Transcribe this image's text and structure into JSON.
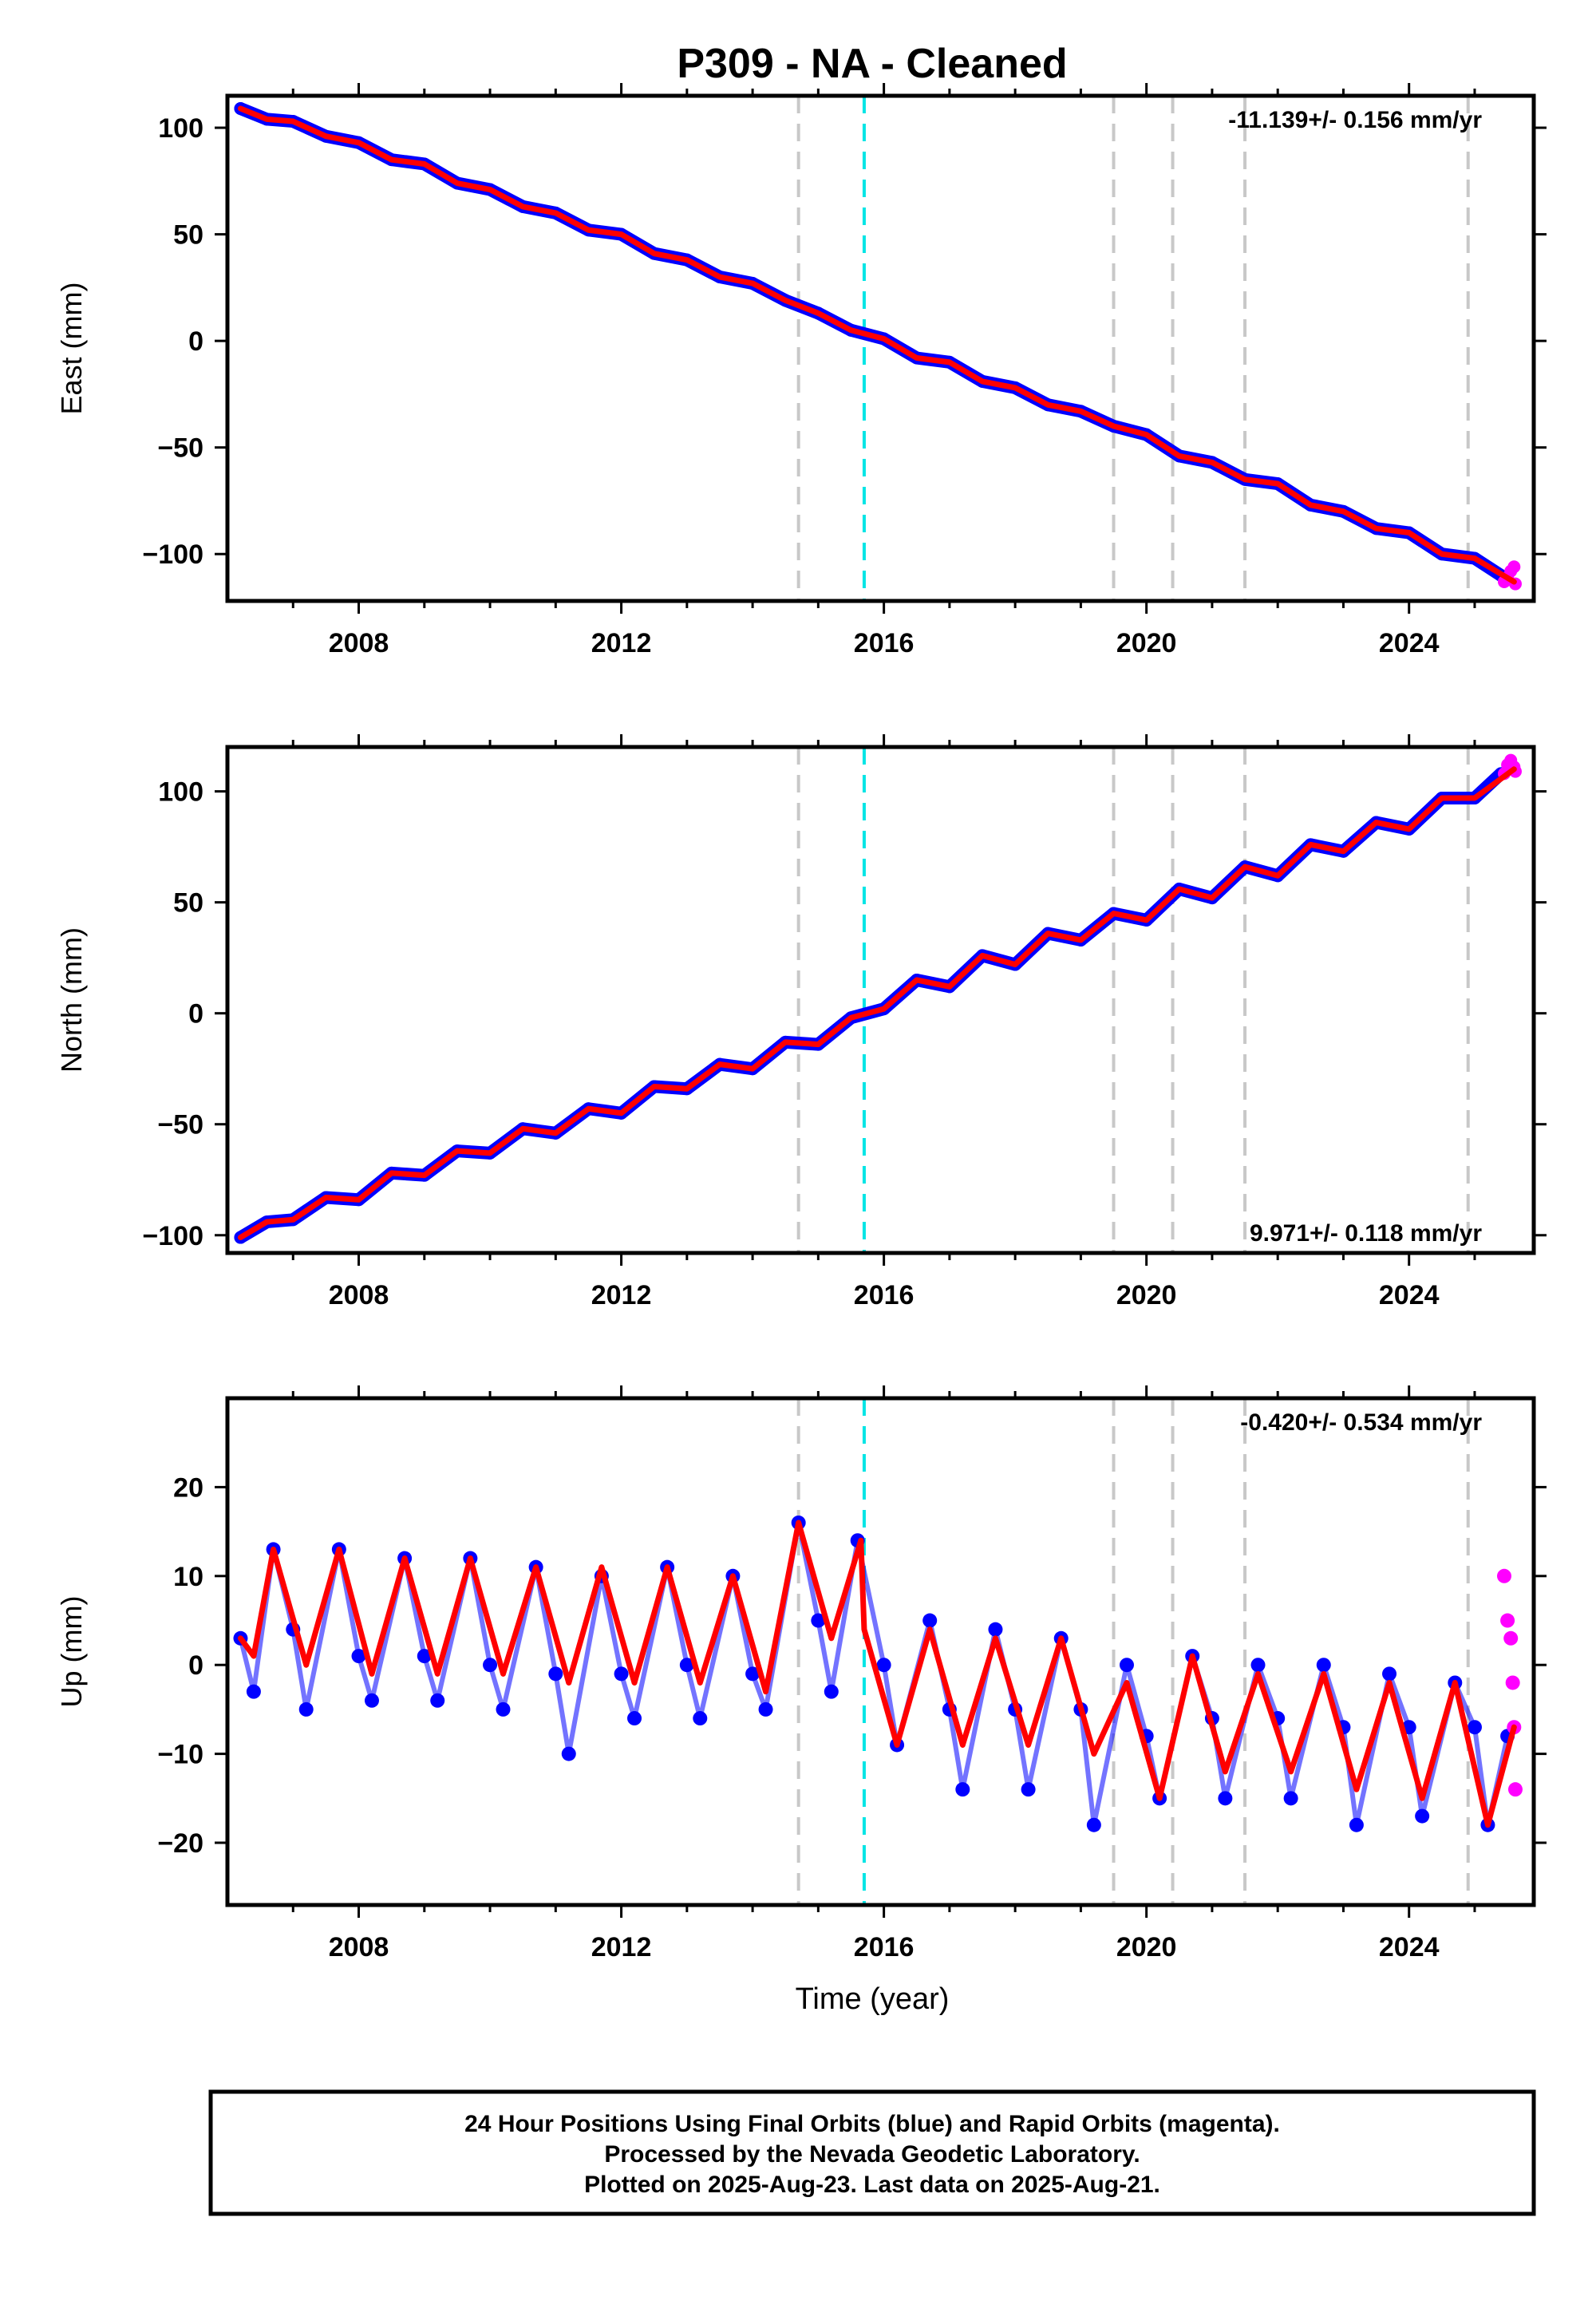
{
  "title": "P309  - NA - Cleaned",
  "xlabel": "Time (year)",
  "caption": {
    "line1": "24 Hour Positions Using Final Orbits (blue) and Rapid Orbits (magenta).",
    "line2": "Processed by the Nevada Geodetic Laboratory.",
    "line3": "Plotted on 2025-Aug-23. Last data on 2025-Aug-21."
  },
  "colors": {
    "final_orbits": "#0000ff",
    "rapid_orbits": "#ff00ff",
    "model": "#ff0000",
    "equipment_change": "#c8c8c8",
    "earthquake": "#00e5e5"
  },
  "chart_data": [
    {
      "type": "scatter",
      "component": "East",
      "ylabel": "East (mm)",
      "rate_label": "-11.139+/- 0.156 mm/yr",
      "rate_position": "top-right",
      "xlim": [
        2006.0,
        2025.9
      ],
      "ylim": [
        -122,
        115
      ],
      "x_ticks": [
        "2008",
        "2012",
        "2016",
        "2020",
        "2024"
      ],
      "y_ticks": [
        "100",
        "50",
        "0",
        "−50",
        "−100"
      ],
      "y_tick_values": [
        100,
        50,
        0,
        -50,
        -100
      ],
      "equipment_change_years": [
        2014.7,
        2019.5,
        2020.4,
        2021.5,
        2024.9
      ],
      "earthquake_years": [
        2015.7
      ],
      "series": [
        {
          "name": "Final Orbits",
          "color": "#0000ff",
          "x": [
            2006.2,
            2006.6,
            2007.0,
            2007.5,
            2008.0,
            2008.5,
            2009.0,
            2009.5,
            2010.0,
            2010.5,
            2011.0,
            2011.5,
            2012.0,
            2012.5,
            2013.0,
            2013.5,
            2014.0,
            2014.5,
            2015.0,
            2015.5,
            2016.0,
            2016.5,
            2017.0,
            2017.5,
            2018.0,
            2018.5,
            2019.0,
            2019.5,
            2020.0,
            2020.5,
            2021.0,
            2021.5,
            2022.0,
            2022.5,
            2023.0,
            2023.5,
            2024.0,
            2024.5,
            2025.0,
            2025.4
          ],
          "y": [
            109,
            104,
            103,
            96,
            93,
            85,
            83,
            74,
            71,
            63,
            60,
            52,
            50,
            41,
            38,
            30,
            27,
            19,
            13,
            5,
            1,
            -8,
            -10,
            -19,
            -22,
            -30,
            -33,
            -40,
            -44,
            -54,
            -57,
            -65,
            -67,
            -77,
            -80,
            -88,
            -90,
            -100,
            -102,
            -110
          ]
        },
        {
          "name": "Rapid Orbits",
          "color": "#ff00ff",
          "x": [
            2025.45,
            2025.5,
            2025.55,
            2025.6,
            2025.62
          ],
          "y": [
            -113,
            -111,
            -108,
            -106,
            -114
          ]
        }
      ],
      "model_line": {
        "x": [
          2006.2,
          2006.6,
          2007.0,
          2007.5,
          2008.0,
          2008.5,
          2009.0,
          2009.5,
          2010.0,
          2010.5,
          2011.0,
          2011.5,
          2012.0,
          2012.5,
          2013.0,
          2013.5,
          2014.0,
          2014.5,
          2015.0,
          2015.5,
          2016.0,
          2016.5,
          2017.0,
          2017.5,
          2018.0,
          2018.5,
          2019.0,
          2019.5,
          2020.0,
          2020.5,
          2021.0,
          2021.5,
          2022.0,
          2022.5,
          2023.0,
          2023.5,
          2024.0,
          2024.5,
          2025.0,
          2025.6
        ],
        "y": [
          109,
          104,
          103,
          96,
          93,
          85,
          83,
          74,
          71,
          63,
          60,
          52,
          50,
          41,
          38,
          30,
          27,
          19,
          13,
          5,
          1,
          -8,
          -10,
          -19,
          -22,
          -30,
          -33,
          -40,
          -44,
          -54,
          -57,
          -65,
          -67,
          -77,
          -80,
          -88,
          -90,
          -100,
          -102,
          -113
        ]
      }
    },
    {
      "type": "scatter",
      "component": "North",
      "ylabel": "North (mm)",
      "rate_label": "9.971+/- 0.118 mm/yr",
      "rate_position": "bottom-right",
      "xlim": [
        2006.0,
        2025.9
      ],
      "ylim": [
        -108,
        120
      ],
      "x_ticks": [
        "2008",
        "2012",
        "2016",
        "2020",
        "2024"
      ],
      "y_ticks": [
        "100",
        "50",
        "0",
        "−50",
        "−100"
      ],
      "y_tick_values": [
        100,
        50,
        0,
        -50,
        -100
      ],
      "equipment_change_years": [
        2014.7,
        2019.5,
        2020.4,
        2021.5,
        2024.9
      ],
      "earthquake_years": [
        2015.7
      ],
      "series": [
        {
          "name": "Final Orbits",
          "color": "#0000ff",
          "x": [
            2006.2,
            2006.6,
            2007.0,
            2007.5,
            2008.0,
            2008.5,
            2009.0,
            2009.5,
            2010.0,
            2010.5,
            2011.0,
            2011.5,
            2012.0,
            2012.5,
            2013.0,
            2013.5,
            2014.0,
            2014.5,
            2015.0,
            2015.5,
            2016.0,
            2016.5,
            2017.0,
            2017.5,
            2018.0,
            2018.5,
            2019.0,
            2019.5,
            2020.0,
            2020.5,
            2021.0,
            2021.5,
            2022.0,
            2022.5,
            2023.0,
            2023.5,
            2024.0,
            2024.5,
            2025.0,
            2025.4
          ],
          "y": [
            -101,
            -94,
            -93,
            -83,
            -84,
            -72,
            -73,
            -62,
            -63,
            -52,
            -54,
            -43,
            -45,
            -33,
            -34,
            -23,
            -25,
            -13,
            -14,
            -2,
            2,
            15,
            12,
            26,
            22,
            36,
            33,
            45,
            42,
            56,
            52,
            66,
            62,
            76,
            73,
            86,
            83,
            97,
            97,
            108
          ]
        },
        {
          "name": "Rapid Orbits",
          "color": "#ff00ff",
          "x": [
            2025.45,
            2025.5,
            2025.55,
            2025.6,
            2025.62
          ],
          "y": [
            108,
            112,
            114,
            111,
            109
          ]
        }
      ],
      "model_line": {
        "x": [
          2006.2,
          2006.6,
          2007.0,
          2007.5,
          2008.0,
          2008.5,
          2009.0,
          2009.5,
          2010.0,
          2010.5,
          2011.0,
          2011.5,
          2012.0,
          2012.5,
          2013.0,
          2013.5,
          2014.0,
          2014.5,
          2015.0,
          2015.5,
          2016.0,
          2016.5,
          2017.0,
          2017.5,
          2018.0,
          2018.5,
          2019.0,
          2019.5,
          2020.0,
          2020.5,
          2021.0,
          2021.5,
          2022.0,
          2022.5,
          2023.0,
          2023.5,
          2024.0,
          2024.5,
          2025.0,
          2025.6
        ],
        "y": [
          -101,
          -94,
          -93,
          -83,
          -84,
          -72,
          -73,
          -62,
          -63,
          -52,
          -54,
          -43,
          -45,
          -33,
          -34,
          -23,
          -25,
          -13,
          -14,
          -2,
          2,
          15,
          12,
          26,
          22,
          36,
          33,
          45,
          42,
          56,
          52,
          66,
          62,
          76,
          73,
          86,
          83,
          97,
          97,
          110
        ]
      }
    },
    {
      "type": "scatter",
      "component": "Up",
      "ylabel": "Up (mm)",
      "rate_label": "-0.420+/- 0.534 mm/yr",
      "rate_position": "top-right",
      "xlim": [
        2006.0,
        2025.9
      ],
      "ylim": [
        -27,
        30
      ],
      "x_ticks": [
        "2008",
        "2012",
        "2016",
        "2020",
        "2024"
      ],
      "y_ticks": [
        "20",
        "10",
        "0",
        "−10",
        "−20"
      ],
      "y_tick_values": [
        20,
        10,
        0,
        -10,
        -20
      ],
      "equipment_change_years": [
        2014.7,
        2019.5,
        2020.4,
        2021.5,
        2024.9
      ],
      "earthquake_years": [
        2015.7
      ],
      "series": [
        {
          "name": "Final Orbits",
          "color": "#0000ff",
          "x": [
            2006.2,
            2006.4,
            2006.7,
            2007.0,
            2007.2,
            2007.7,
            2008.0,
            2008.2,
            2008.7,
            2009.0,
            2009.2,
            2009.7,
            2010.0,
            2010.2,
            2010.7,
            2011.0,
            2011.2,
            2011.7,
            2012.0,
            2012.2,
            2012.7,
            2013.0,
            2013.2,
            2013.7,
            2014.0,
            2014.2,
            2014.7,
            2015.0,
            2015.2,
            2015.6,
            2016.0,
            2016.2,
            2016.7,
            2017.0,
            2017.2,
            2017.7,
            2018.0,
            2018.2,
            2018.7,
            2019.0,
            2019.2,
            2019.7,
            2020.0,
            2020.2,
            2020.7,
            2021.0,
            2021.2,
            2021.7,
            2022.0,
            2022.2,
            2022.7,
            2023.0,
            2023.2,
            2023.7,
            2024.0,
            2024.2,
            2024.7,
            2025.0,
            2025.2,
            2025.5
          ],
          "y": [
            3,
            -3,
            13,
            4,
            -5,
            13,
            1,
            -4,
            12,
            1,
            -4,
            12,
            0,
            -5,
            11,
            -1,
            -10,
            10,
            -1,
            -6,
            11,
            0,
            -6,
            10,
            -1,
            -5,
            16,
            5,
            -3,
            14,
            0,
            -9,
            5,
            -5,
            -14,
            4,
            -5,
            -14,
            3,
            -5,
            -18,
            0,
            -8,
            -15,
            1,
            -6,
            -15,
            0,
            -6,
            -15,
            0,
            -7,
            -18,
            -1,
            -7,
            -17,
            -2,
            -7,
            -18,
            -8
          ]
        },
        {
          "name": "Rapid Orbits",
          "color": "#ff00ff",
          "x": [
            2025.45,
            2025.5,
            2025.55,
            2025.58,
            2025.6,
            2025.62
          ],
          "y": [
            10,
            5,
            3,
            -2,
            -7,
            -14
          ]
        }
      ],
      "model_line": {
        "x": [
          2006.2,
          2006.4,
          2006.7,
          2007.2,
          2007.7,
          2008.2,
          2008.7,
          2009.2,
          2009.7,
          2010.2,
          2010.7,
          2011.2,
          2011.7,
          2012.2,
          2012.7,
          2013.2,
          2013.7,
          2014.2,
          2014.7,
          2015.2,
          2015.65,
          2015.7,
          2016.2,
          2016.7,
          2017.2,
          2017.7,
          2018.2,
          2018.7,
          2019.2,
          2019.7,
          2020.2,
          2020.7,
          2021.2,
          2021.7,
          2022.2,
          2022.7,
          2023.2,
          2023.7,
          2024.2,
          2024.7,
          2025.2,
          2025.6
        ],
        "y": [
          3,
          1,
          13,
          0,
          13,
          -1,
          12,
          -1,
          12,
          -1,
          11,
          -2,
          11,
          -2,
          11,
          -2,
          10,
          -3,
          16,
          3,
          14,
          4,
          -9,
          4,
          -9,
          3,
          -9,
          3,
          -10,
          -2,
          -15,
          1,
          -12,
          -1,
          -12,
          -1,
          -14,
          -2,
          -15,
          -2,
          -18,
          -7
        ]
      }
    }
  ]
}
